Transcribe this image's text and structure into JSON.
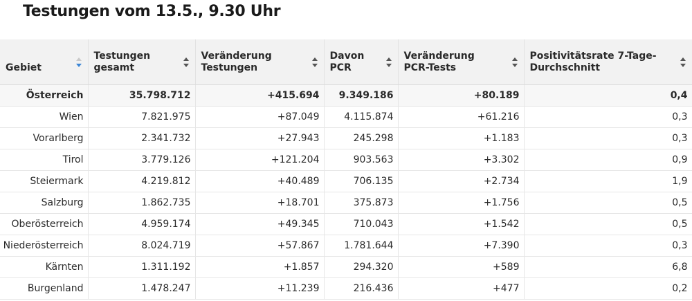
{
  "title": "Testungen vom 13.5., 9.30 Uhr",
  "columns": [
    "Gebiet",
    "Testungen gesamt",
    "Veränderung Testungen",
    "Davon PCR",
    "Veränderung PCR-Tests",
    "Positivitätsrate 7-Tage-Durchschnitt"
  ],
  "sort": {
    "column": "Gebiet",
    "direction": "descending",
    "active_color": "#3b86d6"
  },
  "rows": [
    [
      "Österreich",
      "35.798.712",
      "+415.694",
      "9.349.186",
      "+80.189",
      "0,4"
    ],
    [
      "Wien",
      "7.821.975",
      "+87.049",
      "4.115.874",
      "+61.216",
      "0,3"
    ],
    [
      "Vorarlberg",
      "2.341.732",
      "+27.943",
      "245.298",
      "+1.183",
      "0,3"
    ],
    [
      "Tirol",
      "3.779.126",
      "+121.204",
      "903.563",
      "+3.302",
      "0,9"
    ],
    [
      "Steiermark",
      "4.219.812",
      "+40.489",
      "706.135",
      "+2.734",
      "1,9"
    ],
    [
      "Salzburg",
      "1.862.735",
      "+18.701",
      "375.873",
      "+1.756",
      "0,5"
    ],
    [
      "Oberösterreich",
      "4.959.174",
      "+49.345",
      "710.043",
      "+1.542",
      "0,5"
    ],
    [
      "Niederösterreich",
      "8.024.719",
      "+57.867",
      "1.781.644",
      "+7.390",
      "0,3"
    ],
    [
      "Kärnten",
      "1.311.192",
      "+1.857",
      "294.320",
      "+589",
      "6,8"
    ],
    [
      "Burgenland",
      "1.478.247",
      "+11.239",
      "216.436",
      "+477",
      "0,2"
    ]
  ]
}
